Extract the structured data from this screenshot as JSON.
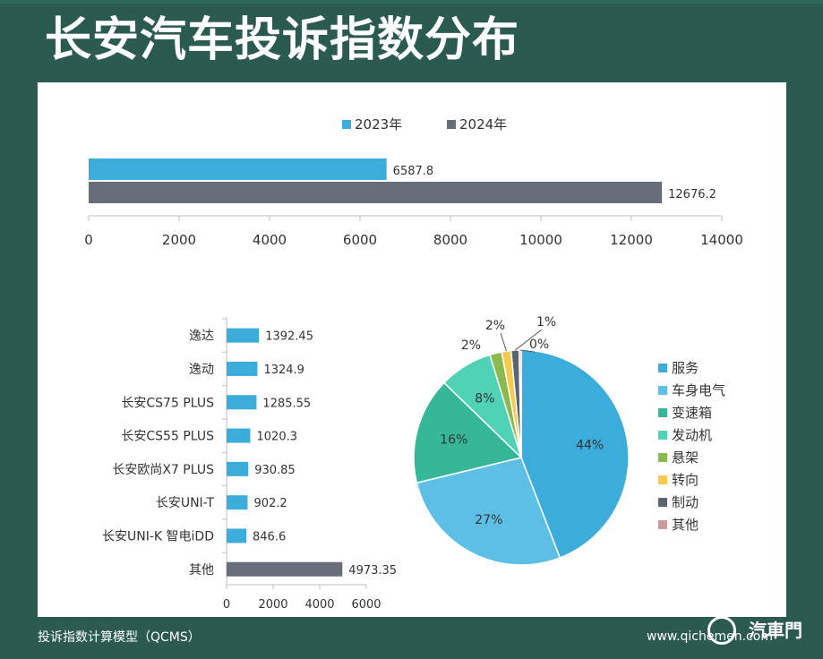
{
  "title": "长安汽车投诉指数分布",
  "footer": {
    "source": "投诉指数计算模型（QCMS）",
    "url": "www.qichemen.com",
    "logo": "汽車門"
  },
  "colors": {
    "background": "#2b5a50",
    "panel": "#ffffff",
    "series_2023": "#3caddb",
    "series_2024": "#676d79"
  },
  "chart_data": [
    {
      "type": "bar",
      "orientation": "horizontal",
      "series": [
        {
          "name": "2023年",
          "values": [
            6587.8
          ],
          "color": "#3caddb"
        },
        {
          "name": "2024年",
          "values": [
            12676.2
          ],
          "color": "#676d79"
        }
      ],
      "legend": "top",
      "xlim": [
        0,
        14000
      ],
      "x_ticks": [
        "0",
        "2000",
        "4000",
        "6000",
        "8000",
        "10000",
        "12000",
        "14000"
      ],
      "data_labels": [
        "6587.8",
        "12676.2"
      ]
    },
    {
      "type": "bar",
      "orientation": "horizontal",
      "categories": [
        "逸达",
        "逸动",
        "长安CS75 PLUS",
        "长安CS55 PLUS",
        "长安欧尚X7 PLUS",
        "长安UNI-T",
        "长安UNI-K 智电iDD",
        "其他"
      ],
      "values": [
        1392.45,
        1324.9,
        1285.55,
        1020.3,
        930.85,
        902.2,
        846.6,
        4973.35
      ],
      "data_labels": [
        "1392.45",
        "1324.9",
        "1285.55",
        "1020.3",
        "930.85",
        "902.2",
        "846.6",
        "4973.35"
      ],
      "bar_colors": [
        "#3caddb",
        "#3caddb",
        "#3caddb",
        "#3caddb",
        "#3caddb",
        "#3caddb",
        "#3caddb",
        "#676d79"
      ],
      "xlim": [
        0,
        6000
      ],
      "x_ticks": [
        "0",
        "2000",
        "4000",
        "6000"
      ]
    },
    {
      "type": "pie",
      "categories": [
        "服务",
        "车身电气",
        "变速箱",
        "发动机",
        "悬架",
        "转向",
        "制动",
        "其他"
      ],
      "values": [
        44,
        27,
        16,
        8,
        2,
        2,
        1,
        0
      ],
      "slice_values": [
        44,
        27,
        16,
        8,
        1.8,
        1.4,
        1.2,
        0.3
      ],
      "labels": [
        "44%",
        "27%",
        "16%",
        "8%",
        "2%",
        "2%",
        "1%",
        "0%"
      ],
      "colors": [
        "#3caddb",
        "#5ebfe6",
        "#36b798",
        "#4fd2b5",
        "#8ab94e",
        "#f7c94d",
        "#5c6470",
        "#cc9a9a"
      ],
      "legend": "right"
    }
  ]
}
